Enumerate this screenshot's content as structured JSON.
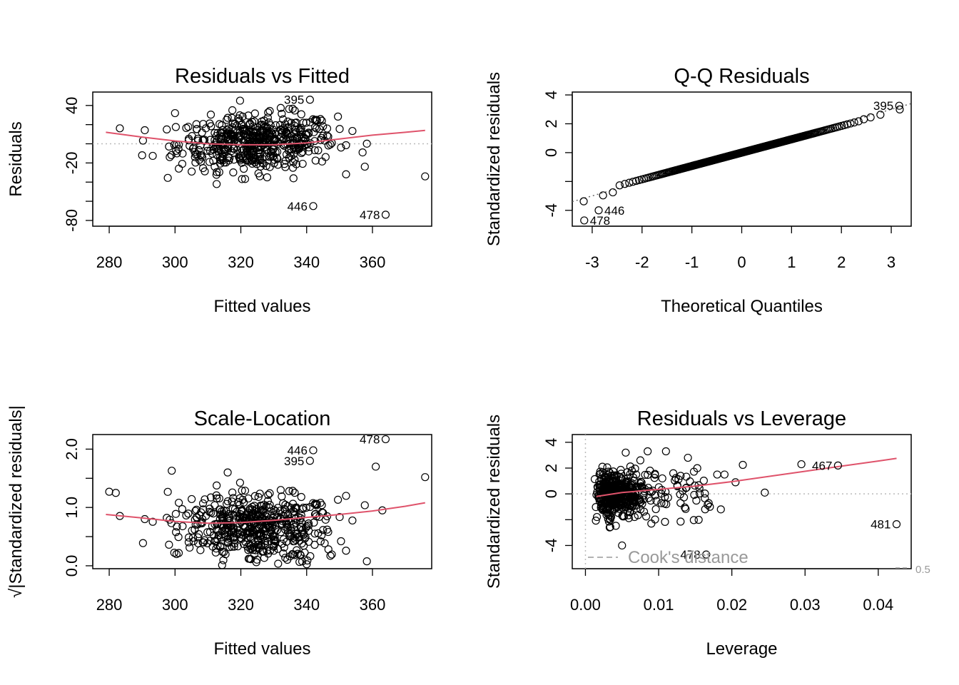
{
  "chart_data": [
    {
      "type": "scatter",
      "id": "p1",
      "title": "Residuals vs Fitted",
      "xlabel": "Fitted values",
      "ylabel": "Residuals",
      "xlim": [
        275,
        378
      ],
      "ylim": [
        -86,
        54
      ],
      "xticks": [
        280,
        300,
        320,
        340,
        360
      ],
      "yticks": [
        -80,
        -60,
        -40,
        -20,
        0,
        20,
        40
      ],
      "yticks_labeled": [
        -80,
        -20,
        40
      ],
      "refline": {
        "orientation": "h",
        "value": 0,
        "style": "dotted",
        "color": "#bbbbbb"
      },
      "smooth": {
        "color": "#DF536B",
        "x": [
          279,
          290,
          300,
          310,
          320,
          330,
          340,
          350,
          360,
          370,
          376
        ],
        "y": [
          12,
          7,
          3,
          0,
          -1,
          -1,
          1,
          5,
          9,
          12,
          14
        ]
      },
      "labeled_points": [
        {
          "label": "395",
          "x": 341,
          "y": 46
        },
        {
          "label": "446",
          "x": 342,
          "y": -65
        },
        {
          "label": "478",
          "x": 364,
          "y": -74
        }
      ],
      "extra_points": [
        [
          376,
          -34
        ],
        [
          290,
          -12
        ],
        [
          300,
          32
        ],
        [
          357,
          -9
        ],
        [
          336,
          -36
        ],
        [
          328,
          -35
        ]
      ]
    },
    {
      "type": "scatter",
      "id": "p2",
      "title": "Q-Q Residuals",
      "xlabel": "Theoretical Quantiles",
      "ylabel": "Standardized residuals",
      "xlim": [
        -3.4,
        3.4
      ],
      "ylim": [
        -5.1,
        4.2
      ],
      "xticks": [
        -3,
        -2,
        -1,
        0,
        1,
        2,
        3
      ],
      "yticks": [
        -4,
        -2,
        0,
        2,
        4
      ],
      "yticks_labeled": [
        -4,
        0,
        2,
        4
      ],
      "refline": {
        "type": "abline",
        "intercept": 0,
        "slope": 1.0,
        "style": "dotted",
        "color": "#666666"
      },
      "labeled_points": [
        {
          "label": "395",
          "x": 3.16,
          "y": 3.25
        },
        {
          "label": "446",
          "x": -2.87,
          "y": -4.0
        },
        {
          "label": "478",
          "x": -3.16,
          "y": -4.7
        }
      ]
    },
    {
      "type": "scatter",
      "id": "p3",
      "title": "Scale-Location",
      "xlabel": "Fitted values",
      "ylabel": "√|Standardized residuals|",
      "xlim": [
        275,
        378
      ],
      "ylim": [
        -0.05,
        2.25
      ],
      "xticks": [
        280,
        300,
        320,
        340,
        360
      ],
      "yticks": [
        0.0,
        0.5,
        1.0,
        1.5,
        2.0
      ],
      "yticks_labeled": [
        0.0,
        1.0,
        2.0
      ],
      "ytick_labels": {
        "0": "0.0",
        "1": "1.0",
        "2": "2.0"
      },
      "smooth": {
        "color": "#DF536B",
        "x": [
          279,
          290,
          300,
          310,
          320,
          330,
          340,
          350,
          360,
          370,
          376
        ],
        "y": [
          0.88,
          0.82,
          0.76,
          0.73,
          0.74,
          0.78,
          0.83,
          0.88,
          0.94,
          1.02,
          1.08
        ]
      },
      "labeled_points": [
        {
          "label": "478",
          "x": 364,
          "y": 2.17
        },
        {
          "label": "446",
          "x": 342,
          "y": 1.98
        },
        {
          "label": "395",
          "x": 341,
          "y": 1.8
        }
      ],
      "extra_points": [
        [
          376,
          1.52
        ],
        [
          280,
          1.27
        ],
        [
          282,
          1.25
        ],
        [
          299,
          1.63
        ],
        [
          316,
          1.6
        ],
        [
          361,
          1.7
        ],
        [
          363,
          0.95
        ]
      ]
    },
    {
      "type": "scatter",
      "id": "p4",
      "title": "Residuals vs Leverage",
      "xlabel": "Leverage",
      "ylabel": "Standardized residuals",
      "xlim": [
        -0.0018,
        0.0445
      ],
      "ylim": [
        -5.8,
        4.6
      ],
      "xticks": [
        0.0,
        0.01,
        0.02,
        0.03,
        0.04
      ],
      "xtick_labels": [
        "0.00",
        "0.01",
        "0.02",
        "0.03",
        "0.04"
      ],
      "yticks": [
        -4,
        -2,
        0,
        2,
        4
      ],
      "yticks_labeled": [
        -4,
        0,
        2,
        4
      ],
      "refline": {
        "orientation": "h",
        "value": 0,
        "style": "dotted",
        "color": "#bbbbbb"
      },
      "vline": {
        "value": 0,
        "style": "dotted",
        "color": "#bbbbbb"
      },
      "smooth": {
        "color": "#DF536B",
        "x": [
          0.0015,
          0.005,
          0.01,
          0.015,
          0.02,
          0.025,
          0.03,
          0.035,
          0.04,
          0.0425
        ],
        "y": [
          -0.2,
          0.1,
          0.35,
          0.6,
          0.95,
          1.35,
          1.75,
          2.15,
          2.55,
          2.75
        ]
      },
      "labeled_points": [
        {
          "label": "467",
          "x": 0.0345,
          "y": 2.2
        },
        {
          "label": "481",
          "x": 0.0425,
          "y": -2.35
        },
        {
          "label": "478",
          "x": 0.0165,
          "y": -4.7
        }
      ],
      "extra_points": [
        [
          0.0295,
          2.3
        ],
        [
          0.0245,
          0.1
        ],
        [
          0.0215,
          2.25
        ],
        [
          0.0205,
          0.9
        ],
        [
          0.019,
          1.5
        ],
        [
          0.018,
          1.5
        ],
        [
          0.014,
          2.8
        ],
        [
          0.011,
          3.3
        ],
        [
          0.0085,
          3.3
        ],
        [
          0.0055,
          3.2
        ],
        [
          0.013,
          -2.15
        ],
        [
          0.009,
          -2.3
        ],
        [
          0.005,
          -4.0
        ],
        [
          0.017,
          -1.0
        ],
        [
          0.0185,
          -1.2
        ],
        [
          0.012,
          1.6
        ],
        [
          0.013,
          1.4
        ],
        [
          0.0105,
          1.2
        ],
        [
          0.0095,
          1.55
        ],
        [
          0.0075,
          2.6
        ]
      ],
      "legend": {
        "label": "Cook's distance",
        "position": "bottom-left",
        "line_style": "dashed",
        "color": "#999999"
      },
      "cook_contour_label": "0.5"
    }
  ]
}
